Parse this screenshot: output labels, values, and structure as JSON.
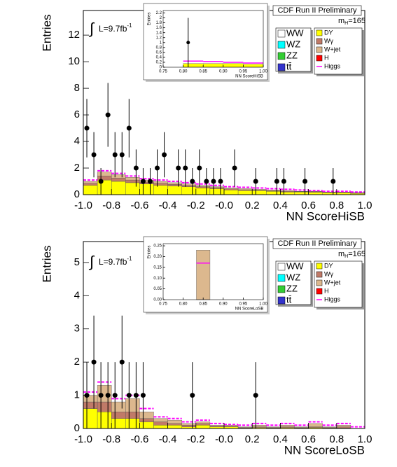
{
  "chart_data": [
    {
      "type": "histogram",
      "xlabel": "NN ScoreHiSB",
      "ylabel": "Entries",
      "annotations": {
        "cdf": "CDF Run II Preliminary",
        "integral": "∫",
        "luminosity": "L=9.7fb",
        "luminosity_sup": "-1",
        "mass": "m",
        "mass_sub": "H",
        "mass_value": "=165"
      },
      "bins": [
        -1.0,
        -0.9,
        -0.8,
        -0.7,
        -0.6,
        -0.5,
        -0.4,
        -0.3,
        -0.2,
        -0.1,
        0.0,
        0.1,
        0.2,
        0.3,
        0.4,
        0.5,
        0.6,
        0.7,
        0.8,
        0.9,
        1.0
      ],
      "series": [
        {
          "name": "DY",
          "color": "#ffff00",
          "values": [
            0.7,
            1.1,
            1.0,
            0.9,
            0.8,
            0.7,
            0.65,
            0.6,
            0.5,
            0.45,
            0.35,
            0.3,
            0.3,
            0.25,
            0.2,
            0.2,
            0.18,
            0.15,
            0.15,
            0.1
          ]
        },
        {
          "name": "Wγ",
          "color": "#c07a68",
          "values": [
            0.15,
            0.3,
            0.25,
            0.2,
            0.15,
            0.15,
            0.12,
            0.1,
            0.1,
            0.08,
            0.08,
            0.07,
            0.05,
            0.05,
            0.05,
            0.03,
            0.04,
            0.03,
            0.03,
            0.03
          ]
        },
        {
          "name": "W+jet",
          "color": "#dcb88e",
          "values": [
            0.15,
            0.3,
            0.25,
            0.2,
            0.15,
            0.15,
            0.13,
            0.1,
            0.1,
            0.07,
            0.07,
            0.08,
            0.05,
            0.05,
            0.05,
            0.02,
            0.03,
            0.02,
            0.02,
            0.02
          ]
        }
      ],
      "higgs": {
        "name": "Higgs",
        "color": "#ff00ff",
        "values": [
          1.1,
          1.8,
          1.6,
          1.4,
          1.2,
          1.1,
          1.0,
          0.9,
          0.8,
          0.7,
          0.6,
          0.55,
          0.5,
          0.45,
          0.4,
          0.35,
          0.3,
          0.25,
          0.25,
          0.2
        ]
      },
      "points": {
        "x": [
          -0.975,
          -0.925,
          -0.875,
          -0.825,
          -0.775,
          -0.725,
          -0.675,
          -0.625,
          -0.575,
          -0.525,
          -0.475,
          -0.425,
          -0.325,
          -0.275,
          -0.225,
          -0.175,
          -0.125,
          -0.075,
          -0.025,
          0.075,
          0.225,
          0.375,
          0.425,
          0.575,
          0.775
        ],
        "values": [
          5,
          3,
          1,
          6,
          3,
          3,
          5,
          2,
          1,
          1,
          2,
          3,
          2,
          2,
          1,
          2,
          1,
          1,
          1,
          2,
          1,
          1,
          1,
          1,
          1
        ],
        "errors": [
          2.2,
          1.7,
          1,
          2.4,
          1.7,
          1.7,
          2.2,
          1.4,
          1,
          1,
          1.4,
          1.7,
          1.4,
          1.4,
          1,
          1.4,
          1,
          1,
          1,
          1.4,
          1,
          1,
          1,
          1,
          1
        ]
      },
      "other_processes": [
        {
          "name": "WW",
          "color": "#ffffff"
        },
        {
          "name": "WZ",
          "color": "#00ffff"
        },
        {
          "name": "ZZ",
          "color": "#33cc33"
        },
        {
          "name": "tt̄",
          "color": "#3333cc"
        }
      ],
      "extra_processes": [
        {
          "name": "H",
          "color": "#ff0000"
        }
      ],
      "xlim": [
        -1.0,
        1.0
      ],
      "ylim": [
        0,
        13.85
      ],
      "xticks": [
        {
          "value": -1.0,
          "label": "-1.0"
        },
        {
          "value": -0.8,
          "label": "-0.8"
        },
        {
          "value": -0.6,
          "label": "-0.6"
        },
        {
          "value": -0.4,
          "label": "-0.4"
        },
        {
          "value": -0.2,
          "label": "-0.2"
        },
        {
          "value": 0.0,
          "label": "-0.0"
        },
        0.2,
        0.4,
        0.6,
        0.8,
        {
          "value": 1.0,
          "label": "1.0"
        }
      ],
      "yticks": [
        0,
        2,
        4,
        6,
        8,
        10,
        12
      ]
    },
    {
      "type": "histogram",
      "xlabel": "NN ScoreHiSB",
      "ylabel": "Entries",
      "bins": [
        0.75,
        0.8,
        0.85,
        0.9,
        0.95,
        1.0
      ],
      "series": [
        {
          "color": "#ffff00",
          "values": [
            0,
            0.15,
            0.15,
            0.15,
            0.12
          ]
        }
      ],
      "higgs": {
        "color": "#ff00ff",
        "values": [
          null,
          0.25,
          0.23,
          0.2,
          0.17
        ]
      },
      "points": {
        "x": [
          0.8125
        ],
        "values": [
          1
        ],
        "errors": [
          1
        ]
      },
      "xlim": [
        0.75,
        1.0
      ],
      "ylim": [
        0,
        2.3
      ],
      "xticks": [
        0.75,
        {
          "value": 0.8,
          "label": "0.80"
        },
        0.85,
        {
          "value": 0.9,
          "label": "0.90"
        },
        0.95,
        {
          "value": 1.0,
          "label": "1.00"
        }
      ],
      "yticks": [
        0,
        0.2,
        0.4,
        0.6,
        0.8,
        1,
        1.2,
        1.4,
        1.6,
        1.8,
        2,
        2.2
      ]
    },
    {
      "type": "histogram",
      "xlabel": "NN ScoreLoSB",
      "ylabel": "Entries",
      "annotations": {
        "cdf": "CDF Run II Preliminary",
        "integral": "∫",
        "luminosity": "L=9.7fb",
        "luminosity_sup": "-1",
        "mass": "m",
        "mass_sub": "H",
        "mass_value": "=165"
      },
      "bins": [
        -1.0,
        -0.9,
        -0.8,
        -0.7,
        -0.6,
        -0.5,
        -0.4,
        -0.3,
        -0.2,
        -0.1,
        0.0,
        0.1,
        0.2,
        0.3,
        0.4,
        0.5,
        0.6,
        0.7,
        0.8,
        0.9,
        1.0
      ],
      "series": [
        {
          "name": "DY",
          "color": "#ffff00",
          "values": [
            0.6,
            0.5,
            0.3,
            0.3,
            0.2,
            0.1,
            0.1,
            0.05,
            0.1,
            0.05,
            0.05,
            0.02,
            0.03,
            0.02,
            0.03,
            0.02,
            0.03,
            0.02,
            0.02,
            0
          ]
        },
        {
          "name": "Wγ",
          "color": "#c07a68",
          "values": [
            0.2,
            0.3,
            0.2,
            0.2,
            0.1,
            0.1,
            0.05,
            0.05,
            0.05,
            0.02,
            0.02,
            0.01,
            0.02,
            0.01,
            0.02,
            0.01,
            0.02,
            0.01,
            0.03,
            0
          ]
        },
        {
          "name": "W+jet",
          "color": "#dcb88e",
          "values": [
            0.2,
            0.5,
            0.3,
            0.4,
            0.2,
            0.1,
            0.1,
            0.05,
            0.05,
            0.03,
            0.03,
            0.02,
            0.05,
            0.02,
            0.05,
            0.02,
            0.1,
            0.02,
            0.05,
            0
          ]
        }
      ],
      "higgs": {
        "name": "Higgs",
        "color": "#ff00ff",
        "values": [
          1.1,
          1.4,
          0.9,
          1.0,
          0.6,
          0.35,
          0.3,
          0.2,
          0.25,
          0.15,
          0.12,
          0.1,
          0.15,
          0.1,
          0.15,
          0.1,
          0.2,
          0.1,
          0.15,
          0.05
        ]
      },
      "points": {
        "x": [
          -0.975,
          -0.925,
          -0.875,
          -0.825,
          -0.775,
          -0.725,
          -0.675,
          -0.625,
          -0.575,
          -0.225,
          0.225
        ],
        "values": [
          1,
          2,
          1,
          1,
          1,
          2,
          1,
          1,
          1,
          1,
          1
        ],
        "errors": [
          1,
          1.4,
          1,
          1,
          1,
          1.4,
          1,
          1,
          1,
          1,
          1
        ]
      },
      "other_processes": [
        {
          "name": "WW",
          "color": "#ffffff"
        },
        {
          "name": "WZ",
          "color": "#00ffff"
        },
        {
          "name": "ZZ",
          "color": "#33cc33"
        },
        {
          "name": "tt̄",
          "color": "#3333cc"
        }
      ],
      "extra_processes": [
        {
          "name": "H",
          "color": "#ff0000"
        }
      ],
      "xlim": [
        -1.0,
        1.0
      ],
      "ylim": [
        0,
        5.63
      ],
      "xticks": [
        {
          "value": -1.0,
          "label": "-1.0"
        },
        {
          "value": -0.8,
          "label": "-0.8"
        },
        {
          "value": -0.6,
          "label": "-0.6"
        },
        {
          "value": -0.4,
          "label": "-0.4"
        },
        {
          "value": -0.2,
          "label": "-0.2"
        },
        {
          "value": 0.0,
          "label": "-0.0"
        },
        0.2,
        0.4,
        0.6,
        0.8,
        {
          "value": 1.0,
          "label": "1.0"
        }
      ],
      "yticks": [
        0,
        1,
        2,
        3,
        4,
        5
      ]
    },
    {
      "type": "histogram",
      "xlabel": "NN ScoreLoSB",
      "ylabel": "Entries",
      "bins": [
        0.75,
        0.8,
        0.833,
        0.867,
        0.9,
        0.95,
        1.0
      ],
      "series": [
        {
          "color": "#dcb88e",
          "values": [
            0,
            0,
            0.23,
            0,
            0,
            0
          ]
        }
      ],
      "higgs": {
        "color": "#ff00ff",
        "values": [
          null,
          null,
          0.17,
          null,
          null,
          null
        ]
      },
      "points": {
        "x": [],
        "values": [],
        "errors": []
      },
      "xlim": [
        0.75,
        1.0
      ],
      "ylim": [
        0,
        0.26
      ],
      "xticks": [
        0.75,
        {
          "value": 0.8,
          "label": "0.80"
        },
        0.85,
        {
          "value": 0.9,
          "label": "0.90"
        },
        0.95,
        {
          "value": 1.0,
          "label": "1.00"
        }
      ],
      "yticks": [
        {
          "value": 0,
          "label": "0.00"
        },
        0.05,
        {
          "value": 0.1,
          "label": "0.10"
        },
        0.15,
        {
          "value": 0.2,
          "label": "0.20"
        },
        0.25
      ]
    }
  ]
}
